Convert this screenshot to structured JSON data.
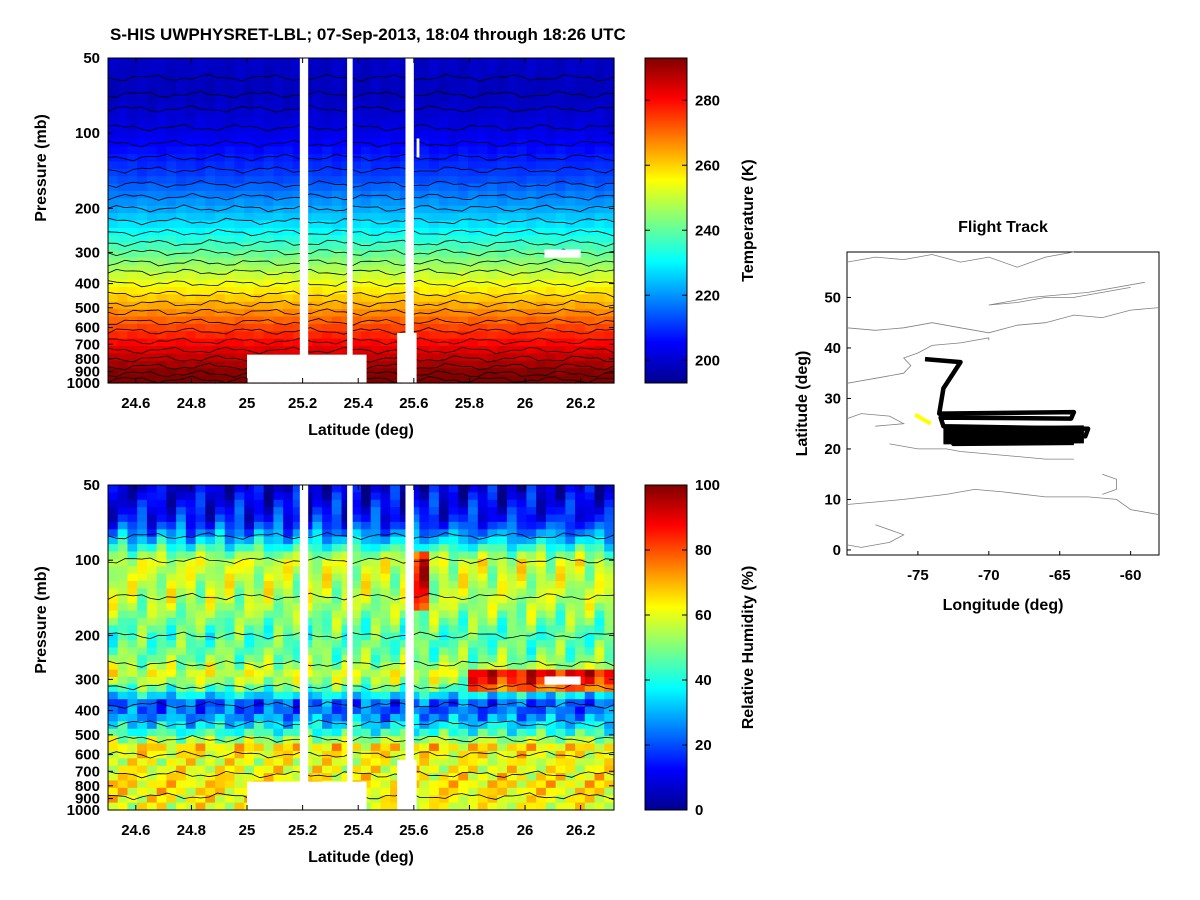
{
  "figure": {
    "title": "S-HIS UWPHYSRET-LBL;   07-Sep-2013, 18:04 through 18:26 UTC"
  },
  "colors": {
    "background": "#ffffff",
    "track_main": "#000000",
    "track_start": "#ffff00",
    "coastline": "#808080",
    "gap": "#ffffff"
  },
  "chart_data": [
    {
      "id": "temperature",
      "type": "heatmap",
      "xlabel": "Latitude (deg)",
      "ylabel": "Pressure (mb)",
      "colorbar_label": "Temperature (K)",
      "x_ticks": [
        24.6,
        24.8,
        25,
        25.2,
        25.4,
        25.6,
        25.8,
        26,
        26.2
      ],
      "x_tick_labels": [
        "24.6",
        "24.8",
        "25",
        "25.2",
        "25.4",
        "25.6",
        "25.8",
        "26",
        "26.2"
      ],
      "xlim": [
        24.5,
        26.32
      ],
      "y_scale": "log",
      "y_ticks": [
        50,
        100,
        200,
        300,
        400,
        500,
        600,
        700,
        800,
        900,
        1000
      ],
      "y_tick_labels": [
        "50",
        "100",
        "200",
        "300",
        "400",
        "500",
        "600",
        "700",
        "800",
        "900",
        "1000"
      ],
      "ylim": [
        50,
        1000
      ],
      "y_reversed": true,
      "clim": [
        193,
        293
      ],
      "colorbar_ticks": [
        200,
        220,
        240,
        260,
        280
      ],
      "colorbar_tick_labels": [
        "200",
        "220",
        "240",
        "260",
        "280"
      ],
      "profile_k": [
        {
          "p": 50,
          "t": 200
        },
        {
          "p": 70,
          "t": 199
        },
        {
          "p": 100,
          "t": 203
        },
        {
          "p": 150,
          "t": 212
        },
        {
          "p": 200,
          "t": 222
        },
        {
          "p": 250,
          "t": 231
        },
        {
          "p": 300,
          "t": 240
        },
        {
          "p": 400,
          "t": 254
        },
        {
          "p": 500,
          "t": 265
        },
        {
          "p": 600,
          "t": 274
        },
        {
          "p": 700,
          "t": 281
        },
        {
          "p": 800,
          "t": 287
        },
        {
          "p": 900,
          "t": 292
        },
        {
          "p": 1000,
          "t": 297
        }
      ],
      "missing_columns": [
        {
          "lat_from": 25.19,
          "lat_to": 25.22
        },
        {
          "lat_from": 25.36,
          "lat_to": 25.38
        },
        {
          "lat_from": 25.57,
          "lat_to": 25.6
        }
      ],
      "missing_regions": [
        {
          "lat_from": 25.0,
          "lat_to": 25.43,
          "p_from": 770,
          "p_to": 1000
        },
        {
          "lat_from": 25.54,
          "lat_to": 25.61,
          "p_from": 630,
          "p_to": 1000
        },
        {
          "lat_from": 26.07,
          "lat_to": 26.2,
          "p_from": 292,
          "p_to": 315
        },
        {
          "lat_from": 25.61,
          "lat_to": 25.62,
          "p_from": 105,
          "p_to": 125
        }
      ]
    },
    {
      "id": "relative_humidity",
      "type": "heatmap",
      "xlabel": "Latitude (deg)",
      "ylabel": "Pressure (mb)",
      "colorbar_label": "Relative Humidity (%)",
      "x_ticks": [
        24.6,
        24.8,
        25,
        25.2,
        25.4,
        25.6,
        25.8,
        26,
        26.2
      ],
      "x_tick_labels": [
        "24.6",
        "24.8",
        "25",
        "25.2",
        "25.4",
        "25.6",
        "25.8",
        "26",
        "26.2"
      ],
      "xlim": [
        24.5,
        26.32
      ],
      "y_scale": "log",
      "y_ticks": [
        50,
        100,
        200,
        300,
        400,
        500,
        600,
        700,
        800,
        900,
        1000
      ],
      "y_tick_labels": [
        "50",
        "100",
        "200",
        "300",
        "400",
        "500",
        "600",
        "700",
        "800",
        "900",
        "1000"
      ],
      "ylim": [
        50,
        1000
      ],
      "y_reversed": true,
      "clim": [
        0,
        100
      ],
      "colorbar_ticks": [
        0,
        20,
        40,
        60,
        80,
        100
      ],
      "colorbar_tick_labels": [
        "0",
        "20",
        "40",
        "60",
        "80",
        "100"
      ],
      "profile_pct": [
        {
          "p": 50,
          "rh": 8
        },
        {
          "p": 70,
          "rh": 15
        },
        {
          "p": 85,
          "rh": 35
        },
        {
          "p": 100,
          "rh": 58
        },
        {
          "p": 150,
          "rh": 55
        },
        {
          "p": 200,
          "rh": 45
        },
        {
          "p": 250,
          "rh": 50
        },
        {
          "p": 290,
          "rh": 60
        },
        {
          "p": 330,
          "rh": 45
        },
        {
          "p": 380,
          "rh": 18
        },
        {
          "p": 430,
          "rh": 28
        },
        {
          "p": 500,
          "rh": 45
        },
        {
          "p": 560,
          "rh": 65
        },
        {
          "p": 650,
          "rh": 60
        },
        {
          "p": 800,
          "rh": 65
        },
        {
          "p": 1000,
          "rh": 60
        }
      ],
      "missing_columns": [
        {
          "lat_from": 25.19,
          "lat_to": 25.22
        },
        {
          "lat_from": 25.36,
          "lat_to": 25.38
        },
        {
          "lat_from": 25.57,
          "lat_to": 25.6
        }
      ],
      "missing_regions": [
        {
          "lat_from": 25.0,
          "lat_to": 25.43,
          "p_from": 770,
          "p_to": 1000
        },
        {
          "lat_from": 25.54,
          "lat_to": 25.61,
          "p_from": 630,
          "p_to": 1000
        },
        {
          "lat_from": 26.07,
          "lat_to": 26.2,
          "p_from": 292,
          "p_to": 315
        }
      ]
    },
    {
      "id": "flight_track",
      "type": "line",
      "title": "Flight Track",
      "xlabel": "Longitude (deg)",
      "ylabel": "Latitude (deg)",
      "xlim": [
        -80,
        -58
      ],
      "ylim": [
        -1,
        59
      ],
      "x_ticks": [
        -75,
        -70,
        -65,
        -60
      ],
      "x_tick_labels": [
        "-75",
        "-70",
        "-65",
        "-60"
      ],
      "y_ticks": [
        0,
        10,
        20,
        30,
        40,
        50
      ],
      "y_tick_labels": [
        "0",
        "10",
        "20",
        "30",
        "40",
        "50"
      ],
      "track": [
        {
          "lon": -74.5,
          "lat": 37.8
        },
        {
          "lon": -72.0,
          "lat": 37.2
        },
        {
          "lon": -73.2,
          "lat": 32.0
        },
        {
          "lon": -73.5,
          "lat": 27.0
        },
        {
          "lon": -64.0,
          "lat": 27.3
        },
        {
          "lon": -64.2,
          "lat": 26.0
        },
        {
          "lon": -73.4,
          "lat": 26.2
        },
        {
          "lon": -73.2,
          "lat": 24.5
        },
        {
          "lon": -63.0,
          "lat": 24.0
        },
        {
          "lon": -63.2,
          "lat": 22.5
        },
        {
          "lon": -72.5,
          "lat": 22.3
        },
        {
          "lon": -72.5,
          "lat": 21.0
        },
        {
          "lon": -64.0,
          "lat": 21.2
        }
      ],
      "highlight_segment": [
        {
          "lon": -75.2,
          "lat": 26.8
        },
        {
          "lon": -74.1,
          "lat": 25.0
        }
      ]
    }
  ]
}
